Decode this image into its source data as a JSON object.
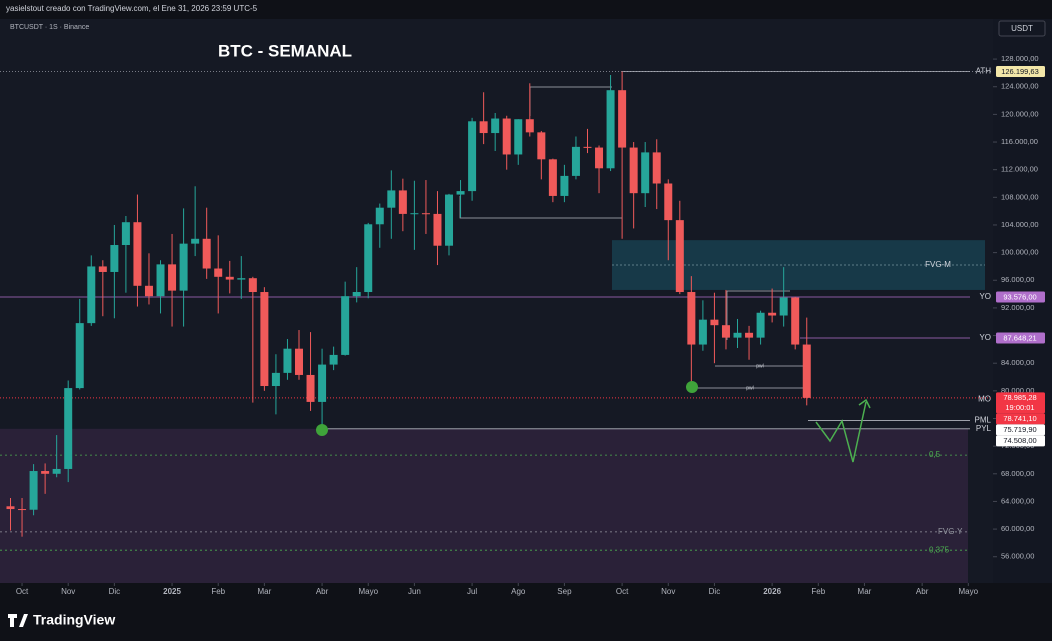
{
  "header": {
    "author_line": "yasielstout creado con TradingView.com, el Ene 31, 2026 23:59 UTC-5",
    "symbol_line": "BTCUSDT · 1S · Binance",
    "currency": "USDT",
    "brand": "TradingView"
  },
  "chart_data": {
    "type": "candlestick",
    "title": "BTC - SEMANAL",
    "open": [
      63300,
      62900,
      62800,
      68400,
      68000,
      68700,
      80400,
      89800,
      98000,
      97200,
      101100,
      104400,
      95200,
      93700,
      98300,
      94500,
      101300,
      102000,
      97700,
      96500,
      96100,
      96300,
      94300,
      80700,
      82600,
      86100,
      82300,
      78400,
      83800,
      85200,
      93700,
      94300,
      104100,
      106500,
      109000,
      105600,
      105700,
      105600,
      101000,
      108400,
      108900,
      119000,
      117300,
      119400,
      114200,
      119300,
      117400,
      113500,
      108200,
      111100,
      115300,
      115200,
      112200,
      123500,
      115200,
      108600,
      114500,
      110000,
      104700,
      94300,
      86700,
      90300,
      89500,
      87700,
      88400,
      87700,
      91300,
      90900,
      93500,
      86700
    ],
    "high": [
      64500,
      64500,
      69400,
      69500,
      73600,
      81500,
      93300,
      99600,
      98900,
      104000,
      105300,
      108400,
      99900,
      98900,
      102700,
      106400,
      109600,
      106500,
      102500,
      98800,
      99500,
      96500,
      95000,
      85300,
      87500,
      88800,
      88500,
      86100,
      86400,
      95800,
      97900,
      104300,
      107100,
      111900,
      110700,
      110400,
      110500,
      108900,
      108500,
      110500,
      119500,
      123200,
      120200,
      119800,
      119300,
      124500,
      117600,
      113600,
      112700,
      116800,
      117900,
      115500,
      125700,
      126200,
      116000,
      116000,
      116400,
      110600,
      107500,
      96600,
      93100,
      94200,
      94600,
      90400,
      89400,
      91600,
      94800,
      97900,
      93600,
      90600
    ],
    "low": [
      59800,
      58900,
      62000,
      65100,
      67500,
      66800,
      80200,
      89400,
      90800,
      90500,
      94200,
      92200,
      92500,
      91200,
      89300,
      89300,
      99500,
      96200,
      91200,
      94100,
      93300,
      78300,
      80000,
      76600,
      81600,
      81600,
      77100,
      74500,
      83000,
      85100,
      92800,
      93400,
      100700,
      102000,
      103100,
      100400,
      102700,
      98200,
      99600,
      105100,
      107500,
      115700,
      114700,
      112000,
      112700,
      116800,
      110600,
      107300,
      107300,
      110600,
      114400,
      108600,
      111800,
      102000,
      103500,
      106600,
      106300,
      98900,
      94000,
      80600,
      85800,
      84000,
      86000,
      86200,
      84500,
      86700,
      89900,
      89300,
      86000,
      77900
    ],
    "close": [
      62900,
      62800,
      68400,
      68000,
      68700,
      80400,
      89800,
      98000,
      97200,
      101100,
      104400,
      95200,
      93700,
      98300,
      94500,
      101300,
      102000,
      97700,
      96500,
      96100,
      96300,
      94300,
      80700,
      82600,
      86100,
      82300,
      78400,
      83800,
      85200,
      93700,
      94300,
      104100,
      106500,
      109000,
      105600,
      105700,
      105600,
      101000,
      108400,
      108900,
      119000,
      117300,
      119400,
      114200,
      119300,
      117400,
      113500,
      108200,
      111100,
      115300,
      115200,
      112200,
      123500,
      115200,
      108600,
      114500,
      110000,
      104700,
      94300,
      86700,
      90300,
      89500,
      87700,
      88400,
      87700,
      91300,
      90900,
      93500,
      86700,
      78985.28
    ],
    "up_color": "#26a69a",
    "down_color": "#f05a5a",
    "xlim": [
      -0.91,
      85.14
    ],
    "xticks": [
      {
        "value": 1,
        "label": "Oct"
      },
      {
        "value": 5,
        "label": "Nov"
      },
      {
        "value": 9,
        "label": "Dic"
      },
      {
        "value": 14,
        "label": "2025"
      },
      {
        "value": 18,
        "label": "Feb"
      },
      {
        "value": 22,
        "label": "Mar"
      },
      {
        "value": 27,
        "label": "Abr"
      },
      {
        "value": 31,
        "label": "Mayo"
      },
      {
        "value": 35,
        "label": "Jun"
      },
      {
        "value": 40,
        "label": "Jul"
      },
      {
        "value": 44,
        "label": "Ago"
      },
      {
        "value": 48,
        "label": "Sep"
      },
      {
        "value": 53,
        "label": "Oct"
      },
      {
        "value": 57,
        "label": "Nov"
      },
      {
        "value": 61,
        "label": "Dic"
      },
      {
        "value": 66,
        "label": "2026"
      },
      {
        "value": 70,
        "label": "Feb"
      },
      {
        "value": 74,
        "label": "Mar"
      },
      {
        "value": 79,
        "label": "Abr"
      },
      {
        "value": 83,
        "label": "Mayo"
      }
    ],
    "ylim": [
      52200,
      133800
    ],
    "yticks": [
      {
        "value": 56000,
        "label": "56.000,00"
      },
      {
        "value": 60000,
        "label": "60.000,00"
      },
      {
        "value": 64000,
        "label": "64.000,00"
      },
      {
        "value": 68000,
        "label": "68.000,00"
      },
      {
        "value": 72000,
        "label": "72.000,00"
      },
      {
        "value": 76000,
        "label": "76.000,00"
      },
      {
        "value": 80000,
        "label": "80.000,00"
      },
      {
        "value": 84000,
        "label": "84.000,00"
      },
      {
        "value": 88000,
        "label": "88.000,00"
      },
      {
        "value": 92000,
        "label": "92.000,00"
      },
      {
        "value": 96000,
        "label": "96.000,00"
      },
      {
        "value": 100000,
        "label": "100.000,00"
      },
      {
        "value": 104000,
        "label": "104.000,00"
      },
      {
        "value": 108000,
        "label": "108.000,00"
      },
      {
        "value": 112000,
        "label": "112.000,00"
      },
      {
        "value": 116000,
        "label": "116.000,00"
      },
      {
        "value": 120000,
        "label": "120.000,00"
      },
      {
        "value": 124000,
        "label": "124.000,00"
      },
      {
        "value": 128000,
        "label": "128.000,00"
      }
    ],
    "grid": false,
    "levels": [
      {
        "name": "ATH",
        "value": 126199.63,
        "value_label": "126.199,63",
        "color": "#f3e7a9"
      },
      {
        "name": "YO",
        "value": 93576.0,
        "value_label": "93.576,00",
        "color": "#b06fcb"
      },
      {
        "name": "YO",
        "value": 87648.21,
        "value_label": "87.648,21",
        "color": "#b06fcb"
      },
      {
        "name": "MO",
        "value": 78741.1,
        "value_label": "78.741,10",
        "color": "#f23645"
      },
      {
        "name": "PML",
        "value": 75719.9,
        "value_label": "75.719,90",
        "color": "#ffffff"
      },
      {
        "name": "PYL",
        "value": 74508.0,
        "value_label": "74.508,00",
        "color": "#ffffff"
      }
    ],
    "last_price": {
      "value": 78985.28,
      "value_label": "78.985,28",
      "countdown": "19:00:01",
      "color": "#f23645"
    },
    "zones": [
      {
        "name": "FVG-M",
        "range": [
          94600,
          101800
        ],
        "color": "#17404f"
      }
    ],
    "guides": [
      {
        "name": "0,5",
        "value": 70700,
        "color": "#4caf50"
      },
      {
        "name": "FVG-Y",
        "value": 59600,
        "color": "#9598a1"
      },
      {
        "name": "0,375",
        "value": 56950,
        "color": "#4caf50"
      }
    ],
    "notes": [
      "pwl",
      "pwl"
    ]
  }
}
